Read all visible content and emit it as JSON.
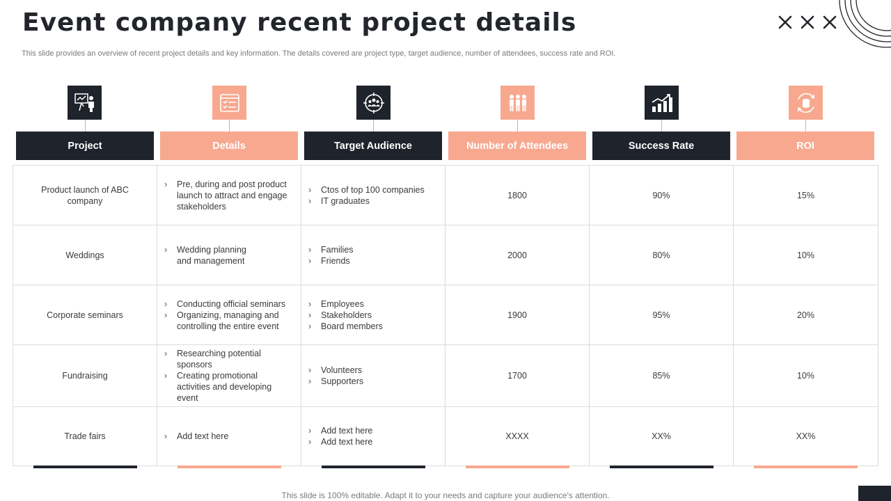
{
  "page": {
    "title": "Event company recent project details",
    "subtitle": "This slide provides an overview of recent project details and key information. The details covered are project type,  target audience, number of attendees, success rate and ROI.",
    "footer": "This slide is 100% editable. Adapt it to your needs and capture your audience's attention."
  },
  "colors": {
    "dark": "#1f232c",
    "peach": "#f7a88f",
    "text": "#3a3a3a"
  },
  "columns": [
    {
      "header": "Project",
      "icon": "presentation-icon",
      "style": "dark"
    },
    {
      "header": "Details",
      "icon": "checklist-icon",
      "style": "peach"
    },
    {
      "header": "Target Audience",
      "icon": "target-audience-icon",
      "style": "dark"
    },
    {
      "header": "Number of Attendees",
      "icon": "people-icon",
      "style": "peach"
    },
    {
      "header": "Success Rate",
      "icon": "growth-chart-icon",
      "style": "dark"
    },
    {
      "header": "ROI",
      "icon": "coin-cycle-icon",
      "style": "peach"
    }
  ],
  "rows": [
    {
      "project": "Product launch of ABC company",
      "details": [
        "Pre, during and post product launch to attract and engage stakeholders"
      ],
      "audience": [
        "Ctos of top 100 companies",
        "IT graduates"
      ],
      "attendees": "1800",
      "success": "90%",
      "roi": "15%"
    },
    {
      "project": "Weddings",
      "details": [
        "Wedding planning and management"
      ],
      "audience": [
        "Families",
        "Friends"
      ],
      "attendees": "2000",
      "success": "80%",
      "roi": "10%"
    },
    {
      "project": "Corporate  seminars",
      "details": [
        "Conducting official seminars",
        "Organizing, managing and controlling the entire event"
      ],
      "audience": [
        "Employees",
        "Stakeholders",
        "Board members"
      ],
      "attendees": "1900",
      "success": "95%",
      "roi": "20%"
    },
    {
      "project": "Fundraising",
      "details": [
        "Researching potential sponsors",
        "Creating promotional activities and developing  event"
      ],
      "audience": [
        "Volunteers",
        "Supporters"
      ],
      "attendees": "1700",
      "success": "85%",
      "roi": "10%"
    },
    {
      "project": "Trade fairs",
      "details": [
        "Add text here"
      ],
      "audience": [
        "Add text here",
        "Add text here"
      ],
      "attendees": "XXXX",
      "success": "XX%",
      "roi": "XX%"
    }
  ]
}
